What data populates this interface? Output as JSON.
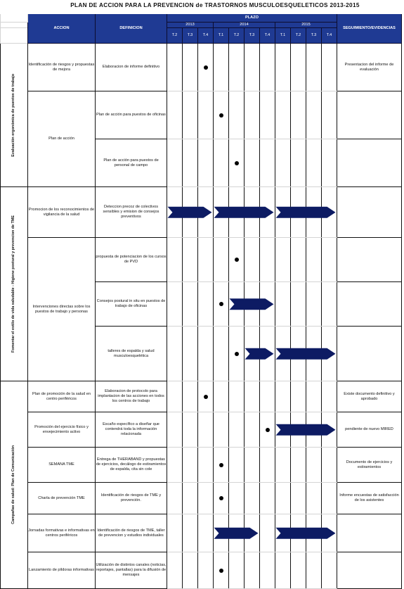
{
  "title": "PLAN DE ACCION PARA LA PREVENCION de TRASTORNOS MUSCULOESQUELETICOS 2013-2015",
  "header": {
    "accion": "ACCION",
    "definicion": "DEFINICION",
    "plazo": "PLAZO",
    "seguimiento": "SEGUIMIENTO/EVIDENCIAS",
    "years": [
      "2013",
      "2014",
      "2015"
    ],
    "quarters": [
      "T.2",
      "T.3",
      "T.4",
      "T.1",
      "T.2",
      "T.3",
      "T.4",
      "T.1",
      "T.2",
      "T.3",
      "T.4"
    ]
  },
  "sections": [
    {
      "label": "Evaluación ergonómica de puestos de trabajo"
    },
    {
      "label": "Fomentar el estilo de vida saludable - Higiene postural y prevencion de TME"
    },
    {
      "label": "Campañas de salud: Plan de Comunicación"
    }
  ],
  "rows": [
    {
      "accion": "Identificación de riesgos y propuestas de mejora",
      "definicion": "Elaboracion de informe definitivo",
      "seguimiento": "Presentacion del informe de evaluación",
      "dot": 2
    },
    {
      "accion": "Plan de acción",
      "definicion": "Plan de acción para puestos de oficinas",
      "seguimiento": "",
      "dot": 3
    },
    {
      "accion": "",
      "definicion": "Plan de acción para puestos de personal de campo",
      "seguimiento": "",
      "dot": 4
    },
    {
      "accion": "Promocion de los reconocimientos de vigilancia de la salud",
      "definicion": "Deteccion precoz de colectivos sensibles y emision de consejos preventivos",
      "seguimiento": "",
      "arrows": [
        [
          0,
          2
        ],
        [
          3,
          6
        ],
        [
          7,
          10
        ]
      ]
    },
    {
      "accion": "Intervenciones directas sobre los puestos de trabajo y personas",
      "definicion": "propuesta de potenciacion de los cursos de PVD",
      "seguimiento": "",
      "dot": 4
    },
    {
      "accion": "",
      "definicion": "Consejos postural in situ en puestos de trabajo de oficinas",
      "seguimiento": "",
      "dot": 3,
      "arrows": [
        [
          4,
          6
        ]
      ]
    },
    {
      "accion": "",
      "definicion": "talleres de espalda y salud musculoesquelética",
      "seguimiento": "",
      "dot": 4,
      "arrows": [
        [
          5,
          6
        ],
        [
          7,
          10
        ]
      ]
    },
    {
      "accion": "Plan de promoción de la salud en centro periféricos",
      "definicion": "Elaboracion de protocolo para implantacion de las acciones en todos los centros de trabajo",
      "seguimiento": "Existe documento definitivo y aprobado",
      "dot": 2
    },
    {
      "accion": "Promoción del ejercicio físico y envejecimiento activo",
      "definicion": "Escaño específico a diseñar que contendrá toda la información relacionada",
      "seguimiento": "pendiente de nuevo MIRED",
      "dot": 6,
      "arrows": [
        [
          7,
          10
        ]
      ]
    },
    {
      "accion": "SEMANA TME",
      "definicion": "Entrega de THERABAND y propuestas de ejercicios, decálogo de estiramientos de espalda, cita sin cole",
      "seguimiento": "Documento de ejercicios y estiramientos",
      "dot": 3
    },
    {
      "accion": "Charla de prevención TME",
      "definicion": "Identificación de riesgos de TME y prevención.",
      "seguimiento": "Informe encuestas de satisfacción de los asistentes",
      "dot": 3
    },
    {
      "accion": "Jornadas formativas e informativas en centros periféricos",
      "definicion": "Identificación de riesgos de TME, taller de prevencion y estudios individuales",
      "seguimiento": "",
      "dot": 4,
      "arrows": [
        [
          3,
          5
        ],
        [
          7,
          10
        ]
      ]
    },
    {
      "accion": "Lanzamiento de píldoras informativas",
      "definicion": "Utilización de distintos canales (noticias, reportajes, pantallas) para la difusión de mensajes",
      "seguimiento": "",
      "dot": 3
    }
  ],
  "colors": {
    "header": "#1f3a93",
    "arrow": "#0d1b63"
  }
}
